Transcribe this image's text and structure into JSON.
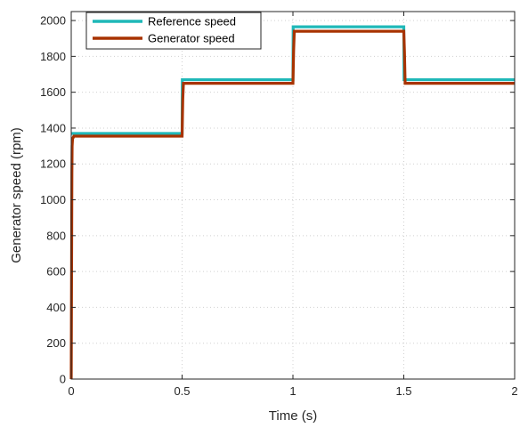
{
  "chart_data": {
    "type": "line",
    "title": "",
    "xlabel": "Time (s)",
    "ylabel": "Generator speed (rpm)",
    "xlim": [
      0,
      2
    ],
    "ylim": [
      0,
      2050
    ],
    "xticks": [
      0,
      0.5,
      1,
      1.5,
      2
    ],
    "xtick_labels": [
      "0",
      "0.5",
      "1",
      "1.5",
      "2"
    ],
    "yticks": [
      0,
      200,
      400,
      600,
      800,
      1000,
      1200,
      1400,
      1600,
      1800,
      2000
    ],
    "ytick_labels": [
      "0",
      "200",
      "400",
      "600",
      "800",
      "1000",
      "1200",
      "1400",
      "1600",
      "1800",
      "2000"
    ],
    "grid": true,
    "grid_style": "dotted",
    "legend_position": "top-left",
    "series": [
      {
        "name": "Reference speed",
        "color": "#1fb8b8",
        "x": [
          0,
          0.001,
          0.5,
          0.501,
          1.0,
          1.001,
          1.5,
          1.501,
          2.0
        ],
        "y": [
          1370,
          1370,
          1370,
          1670,
          1670,
          1965,
          1965,
          1670,
          1670
        ]
      },
      {
        "name": "Generator speed",
        "color": "#a83300",
        "x": [
          0,
          0.003,
          0.004,
          0.006,
          0.012,
          0.5,
          0.503,
          0.506,
          1.0,
          1.003,
          1.006,
          1.5,
          1.503,
          1.506,
          2.0
        ],
        "y": [
          0,
          1150,
          1300,
          1340,
          1355,
          1355,
          1560,
          1650,
          1650,
          1830,
          1940,
          1940,
          1820,
          1650,
          1650
        ]
      }
    ]
  }
}
